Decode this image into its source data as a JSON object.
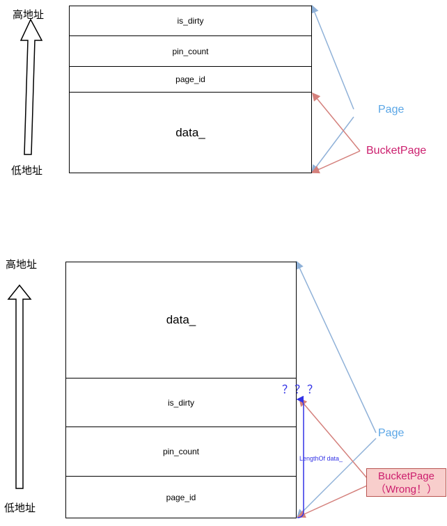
{
  "diagram1": {
    "high_label": "高地址",
    "low_label": "低地址",
    "fields": [
      "is_dirty",
      "pin_count",
      "page_id",
      "data_"
    ],
    "page_label": "Page",
    "bucket_label": "BucketPage"
  },
  "diagram2": {
    "high_label": "高地址",
    "low_label": "低地址",
    "fields": [
      "data_",
      "is_dirty",
      "pin_count",
      "page_id"
    ],
    "page_label": "Page",
    "bucket_label_line1": "BucketPage",
    "bucket_label_line2": "（Wrong！）",
    "question_marks": "？？？",
    "length_label": "LengthOf data_"
  },
  "colors": {
    "page_arrow": "#8fb1d8",
    "bucket_arrow": "#d4807c",
    "length_bracket": "#3232e6"
  }
}
